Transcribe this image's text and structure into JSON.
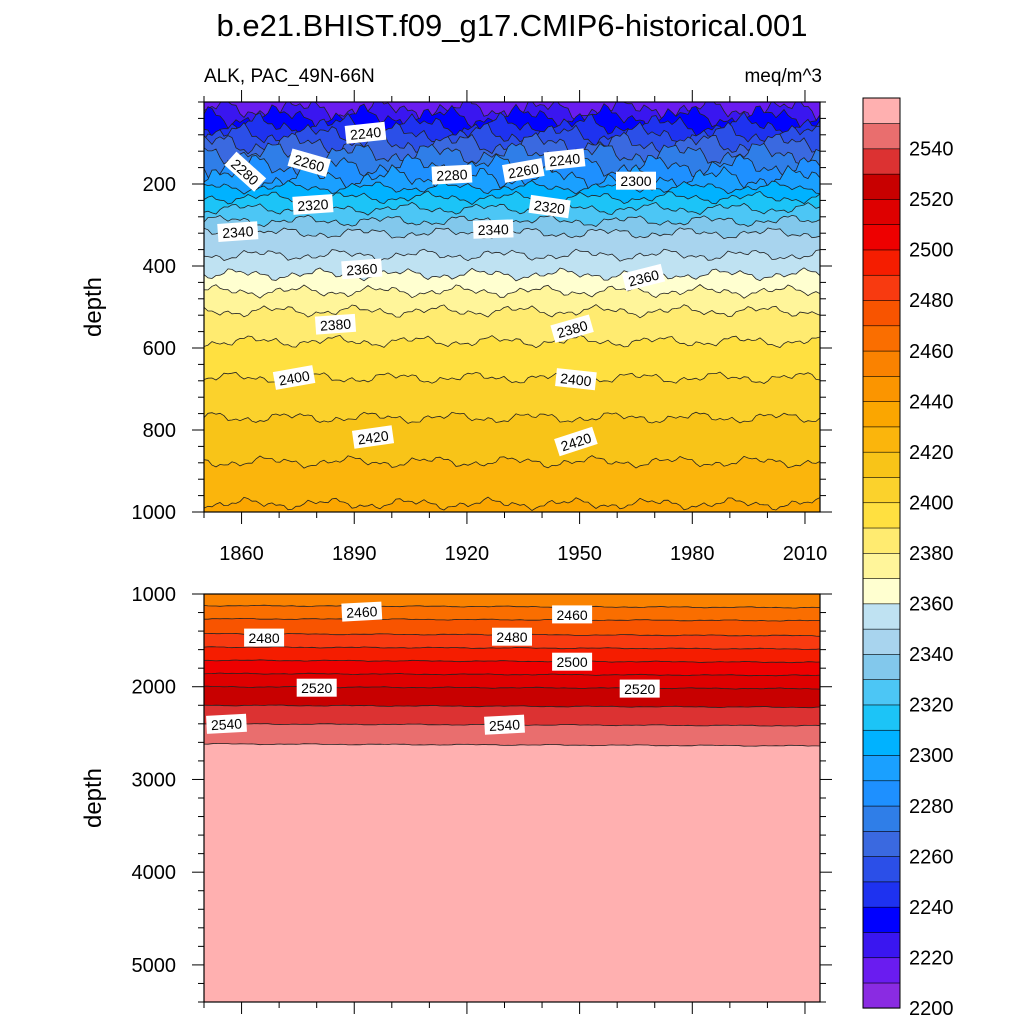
{
  "chart_data": {
    "type": "heatmap",
    "title": "b.e21.BHIST.f09_g17.CMIP6-historical.001",
    "variable_label": "ALK, PAC_49N-66N",
    "units_label": "meq/m^3",
    "x_range": [
      1850,
      2014
    ],
    "x_ticks": [
      1860,
      1890,
      1920,
      1950,
      1980,
      2010
    ],
    "colorbar": {
      "levels": [
        2200,
        2210,
        2220,
        2230,
        2240,
        2250,
        2260,
        2270,
        2280,
        2290,
        2300,
        2310,
        2320,
        2330,
        2340,
        2350,
        2360,
        2370,
        2380,
        2390,
        2400,
        2410,
        2420,
        2430,
        2440,
        2450,
        2460,
        2470,
        2480,
        2490,
        2500,
        2510,
        2520,
        2530,
        2540,
        2550
      ],
      "label_values": [
        "2200",
        "2220",
        "2240",
        "2260",
        "2280",
        "2300",
        "2320",
        "2340",
        "2360",
        "2380",
        "2400",
        "2420",
        "2440",
        "2460",
        "2480",
        "2500",
        "2520",
        "2540"
      ],
      "colors": [
        "#8a2be2",
        "#6a1cf0",
        "#3a16f0",
        "#0000ff",
        "#1e32f0",
        "#2b4fe8",
        "#3a69e0",
        "#2f7ee8",
        "#1e90ff",
        "#1aa0ff",
        "#00b2ff",
        "#1cc4f7",
        "#4cc6f5",
        "#82c8ec",
        "#a8d4ee",
        "#bfe2f2",
        "#ffffd0",
        "#fff59a",
        "#ffeb70",
        "#ffe040",
        "#fbd22c",
        "#f8c418",
        "#fbb50c",
        "#fba600",
        "#fb9500",
        "#fa8200",
        "#fa6e00",
        "#f85400",
        "#f83a10",
        "#f51d00",
        "#ee0000",
        "#de0000",
        "#c80000",
        "#dc3232",
        "#e96e6e",
        "#ffb0b0"
      ]
    },
    "panels": [
      {
        "name": "upper",
        "ylabel": "depth",
        "ylim": [
          0,
          1000
        ],
        "y_ticks": [
          200,
          400,
          600,
          800,
          1000
        ],
        "depth_profile": [
          [
            10,
            2215
          ],
          [
            40,
            2232
          ],
          [
            80,
            2250
          ],
          [
            120,
            2268
          ],
          [
            180,
            2288
          ],
          [
            220,
            2305
          ],
          [
            260,
            2320
          ],
          [
            320,
            2340
          ],
          [
            400,
            2355
          ],
          [
            470,
            2372
          ],
          [
            520,
            2382
          ],
          [
            600,
            2392
          ],
          [
            700,
            2403
          ],
          [
            800,
            2413
          ],
          [
            900,
            2422
          ],
          [
            1000,
            2432
          ]
        ],
        "contour_labels": [
          {
            "text": "2240",
            "year": 1893,
            "depth": 75,
            "rot": -6
          },
          {
            "text": "2280",
            "year": 1861,
            "depth": 170,
            "rot": 42
          },
          {
            "text": "2260",
            "year": 1878,
            "depth": 148,
            "rot": 16
          },
          {
            "text": "2280",
            "year": 1916,
            "depth": 177,
            "rot": -3
          },
          {
            "text": "2260",
            "year": 1935,
            "depth": 167,
            "rot": -10
          },
          {
            "text": "2240",
            "year": 1946,
            "depth": 140,
            "rot": -6
          },
          {
            "text": "2300",
            "year": 1965,
            "depth": 192,
            "rot": 0
          },
          {
            "text": "2320",
            "year": 1879,
            "depth": 250,
            "rot": -4
          },
          {
            "text": "2320",
            "year": 1942,
            "depth": 255,
            "rot": 8
          },
          {
            "text": "2340",
            "year": 1859,
            "depth": 316,
            "rot": -4
          },
          {
            "text": "2340",
            "year": 1927,
            "depth": 310,
            "rot": -2
          },
          {
            "text": "2360",
            "year": 1892,
            "depth": 407,
            "rot": -4
          },
          {
            "text": "2360",
            "year": 1967,
            "depth": 428,
            "rot": -14
          },
          {
            "text": "2380",
            "year": 1885,
            "depth": 542,
            "rot": -4
          },
          {
            "text": "2380",
            "year": 1948,
            "depth": 553,
            "rot": -16
          },
          {
            "text": "2400",
            "year": 1874,
            "depth": 672,
            "rot": -10
          },
          {
            "text": "2400",
            "year": 1949,
            "depth": 676,
            "rot": 6
          },
          {
            "text": "2420",
            "year": 1895,
            "depth": 817,
            "rot": -8
          },
          {
            "text": "2420",
            "year": 1949,
            "depth": 828,
            "rot": -18
          }
        ]
      },
      {
        "name": "lower",
        "ylabel": "depth",
        "ylim": [
          1000,
          5400
        ],
        "y_ticks": [
          1000,
          2000,
          3000,
          4000,
          5000
        ],
        "depth_profile": [
          [
            1000,
            2452
          ],
          [
            1100,
            2458
          ],
          [
            1200,
            2466
          ],
          [
            1400,
            2478
          ],
          [
            1600,
            2492
          ],
          [
            1800,
            2506
          ],
          [
            2000,
            2520
          ],
          [
            2200,
            2530
          ],
          [
            2400,
            2540
          ],
          [
            2600,
            2549
          ],
          [
            2650,
            2552
          ],
          [
            5400,
            2556
          ]
        ],
        "contour_labels": [
          {
            "text": "2460",
            "year": 1892,
            "depth": 1190,
            "rot": -3
          },
          {
            "text": "2460",
            "year": 1948,
            "depth": 1220,
            "rot": 0
          },
          {
            "text": "2480",
            "year": 1866,
            "depth": 1470,
            "rot": 0
          },
          {
            "text": "2480",
            "year": 1932,
            "depth": 1460,
            "rot": 0
          },
          {
            "text": "2500",
            "year": 1948,
            "depth": 1730,
            "rot": 0
          },
          {
            "text": "2520",
            "year": 1880,
            "depth": 2010,
            "rot": 0
          },
          {
            "text": "2520",
            "year": 1966,
            "depth": 2020,
            "rot": 0
          },
          {
            "text": "2540",
            "year": 1856,
            "depth": 2400,
            "rot": -3
          },
          {
            "text": "2540",
            "year": 1930,
            "depth": 2410,
            "rot": -3
          }
        ]
      }
    ]
  }
}
